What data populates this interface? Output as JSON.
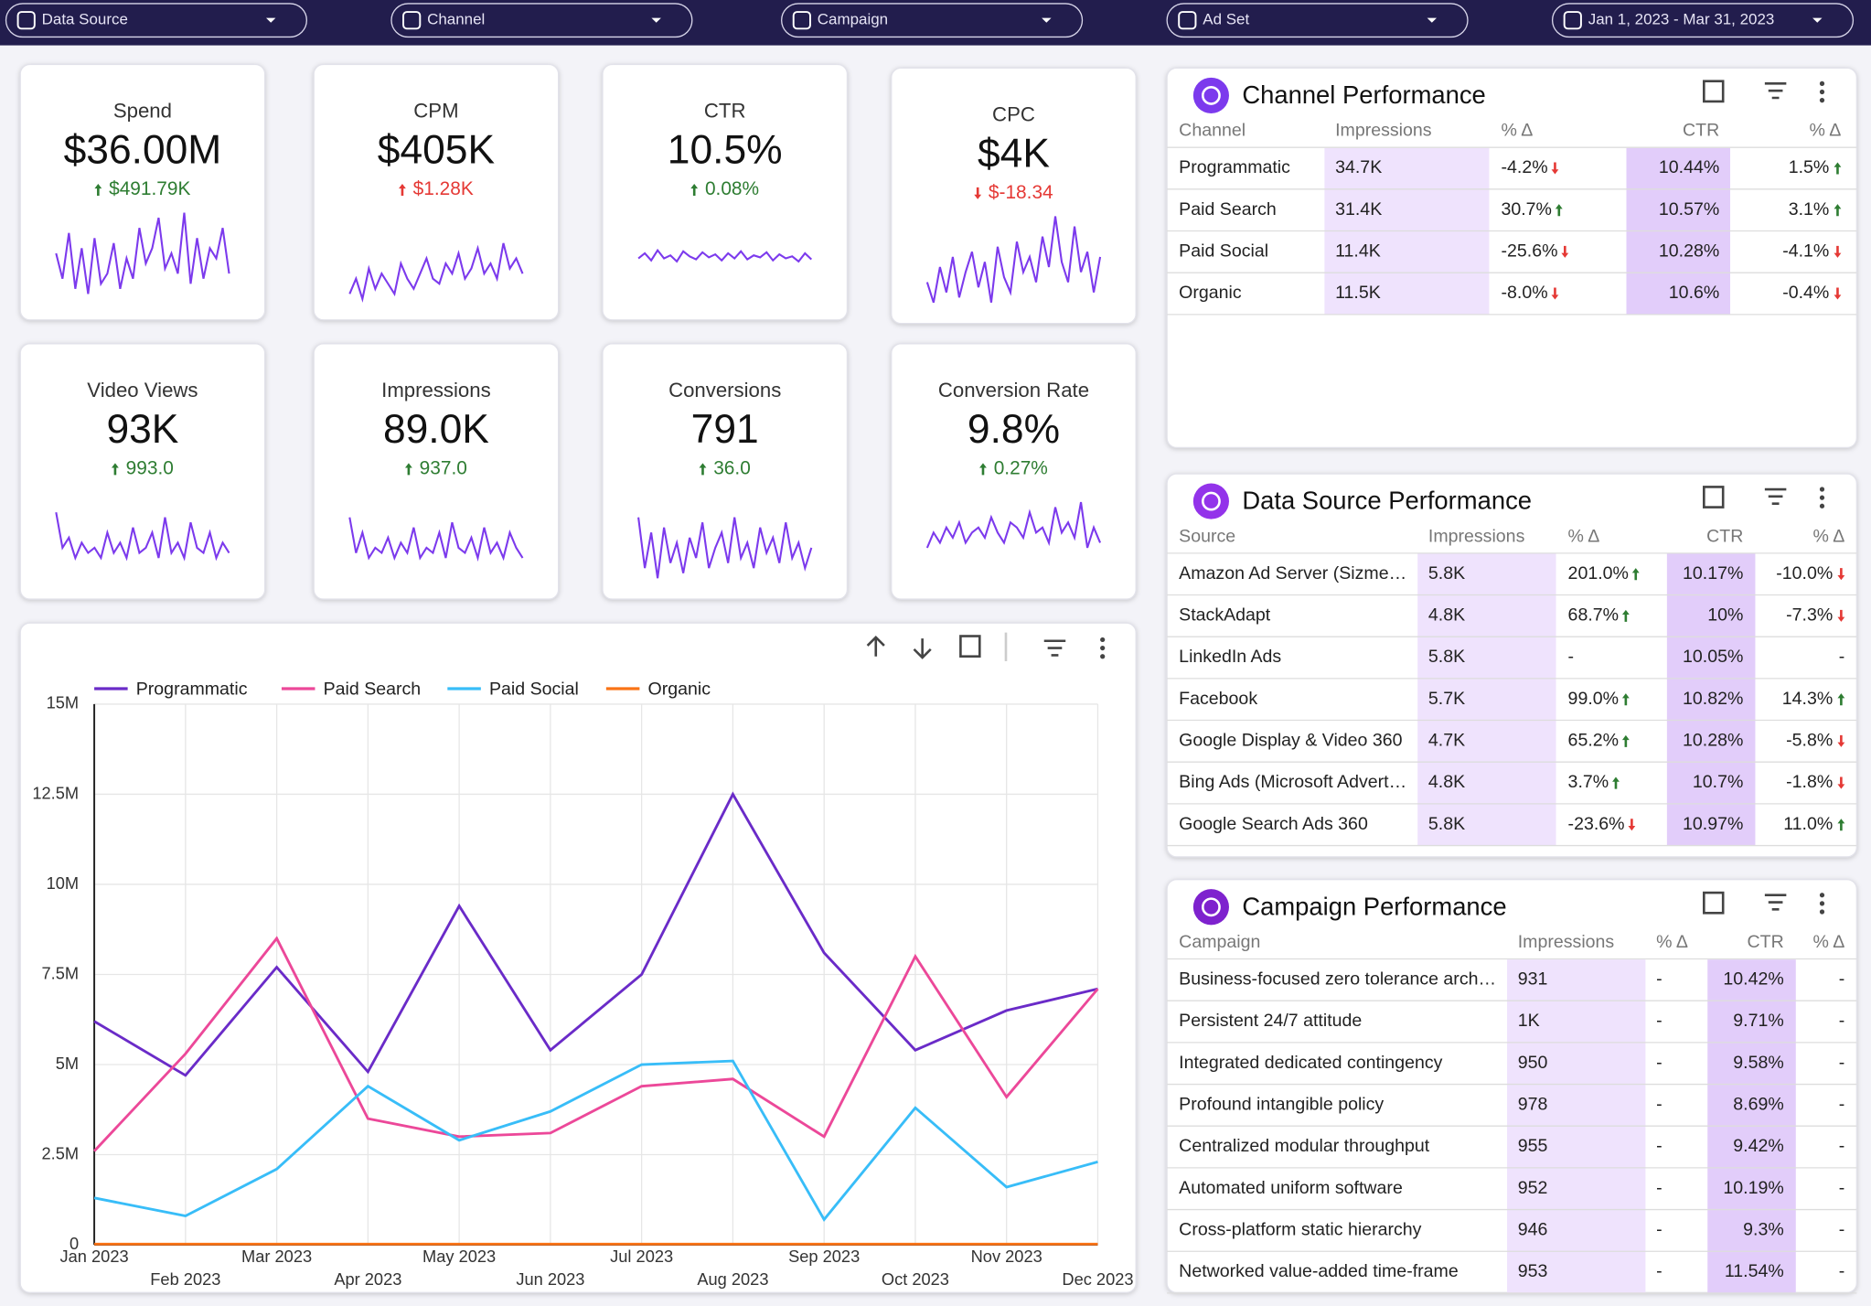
{
  "filters": [
    "Data Source",
    "Channel",
    "Campaign",
    "Ad Set",
    "Jan 1, 2023 - Mar 31, 2023"
  ],
  "sparkline_ylim": [
    0,
    100
  ],
  "kpis": [
    {
      "title": "Spend",
      "value": "$36.00M",
      "delta": "$491.79K",
      "delta_direction": "up",
      "delta_color": "#2e7d32",
      "sparkline": [
        55,
        30,
        75,
        20,
        60,
        15,
        70,
        25,
        35,
        65,
        20,
        50,
        30,
        80,
        45,
        60,
        90,
        40,
        55,
        35,
        95,
        25,
        70,
        30,
        60,
        50,
        80,
        35
      ]
    },
    {
      "title": "CPM",
      "value": "$405K",
      "delta": "$1.28K",
      "delta_direction": "up",
      "delta_color": "#e53935",
      "sparkline": [
        15,
        30,
        10,
        40,
        20,
        35,
        25,
        15,
        45,
        30,
        20,
        35,
        50,
        30,
        25,
        45,
        35,
        55,
        30,
        40,
        60,
        35,
        45,
        30,
        65,
        40,
        50,
        35
      ]
    },
    {
      "title": "CTR",
      "value": "10.5%",
      "delta": "0.08%",
      "delta_direction": "up",
      "delta_color": "#2e7d32",
      "sparkline": [
        50,
        55,
        48,
        58,
        50,
        53,
        47,
        57,
        52,
        49,
        56,
        51,
        54,
        48,
        55,
        50,
        57,
        49,
        53,
        51,
        56,
        48,
        54,
        50,
        52,
        47,
        55,
        49
      ]
    },
    {
      "title": "CPC",
      "value": "$4K",
      "delta": "$-18.34",
      "delta_direction": "down",
      "delta_color": "#e53935",
      "sparkline": [
        30,
        10,
        45,
        20,
        55,
        15,
        40,
        60,
        25,
        50,
        10,
        65,
        35,
        20,
        70,
        40,
        55,
        30,
        75,
        45,
        95,
        50,
        30,
        85,
        40,
        60,
        20,
        55
      ]
    },
    {
      "title": "Video Views",
      "value": "93K",
      "delta": "993.0",
      "delta_direction": "up",
      "delta_color": "#2e7d32",
      "sparkline": [
        75,
        40,
        50,
        30,
        45,
        35,
        40,
        30,
        55,
        35,
        45,
        30,
        60,
        35,
        40,
        55,
        30,
        70,
        35,
        45,
        30,
        65,
        40,
        35,
        55,
        30,
        45,
        35
      ]
    },
    {
      "title": "Impressions",
      "value": "89.0K",
      "delta": "937.0",
      "delta_direction": "up",
      "delta_color": "#2e7d32",
      "sparkline": [
        70,
        35,
        55,
        30,
        40,
        35,
        50,
        30,
        45,
        35,
        60,
        30,
        40,
        35,
        55,
        30,
        65,
        40,
        35,
        50,
        30,
        60,
        35,
        45,
        30,
        55,
        40,
        30
      ]
    },
    {
      "title": "Conversions",
      "value": "791",
      "delta": "36.0",
      "delta_direction": "up",
      "delta_color": "#2e7d32",
      "sparkline": [
        70,
        20,
        55,
        10,
        60,
        25,
        45,
        15,
        50,
        30,
        65,
        20,
        40,
        55,
        25,
        70,
        30,
        45,
        20,
        60,
        35,
        50,
        25,
        65,
        30,
        45,
        20,
        40
      ]
    },
    {
      "title": "Conversion Rate",
      "value": "9.8%",
      "delta": "0.27%",
      "delta_direction": "up",
      "delta_color": "#2e7d32",
      "sparkline": [
        40,
        55,
        45,
        60,
        50,
        65,
        45,
        55,
        60,
        50,
        70,
        55,
        45,
        65,
        60,
        50,
        75,
        55,
        60,
        45,
        80,
        55,
        65,
        50,
        85,
        40,
        60,
        45
      ]
    }
  ],
  "chart_data": {
    "type": "line",
    "categories": [
      "Jan 2023",
      "Feb 2023",
      "Mar 2023",
      "Apr 2023",
      "May 2023",
      "Jun 2023",
      "Jul 2023",
      "Aug 2023",
      "Sep 2023",
      "Oct 2023",
      "Nov 2023",
      "Dec 2023"
    ],
    "series": [
      {
        "name": "Programmatic",
        "color": "#6a2bc8",
        "values": [
          6200000,
          4700000,
          7700000,
          4800000,
          9400000,
          5400000,
          7500000,
          12500000,
          8100000,
          5400000,
          6500000,
          7100000
        ]
      },
      {
        "name": "Paid Search",
        "color": "#ec4899",
        "values": [
          2600000,
          5300000,
          8500000,
          3500000,
          3000000,
          3100000,
          4400000,
          4600000,
          3000000,
          8000000,
          4100000,
          7100000
        ]
      },
      {
        "name": "Paid Social",
        "color": "#38bdf8",
        "values": [
          1300000,
          800000,
          2100000,
          4400000,
          2900000,
          3700000,
          5000000,
          5100000,
          700000,
          3800000,
          1600000,
          2300000
        ]
      },
      {
        "name": "Organic",
        "color": "#f97316",
        "values": [
          20000,
          20000,
          20000,
          20000,
          20000,
          20000,
          20000,
          20000,
          20000,
          20000,
          20000,
          20000
        ]
      }
    ],
    "ylim": [
      0,
      15000000
    ],
    "yticks": [
      0,
      {
        "value": 2500000,
        "label": "2.5M"
      },
      {
        "value": 5000000,
        "label": "5M"
      },
      {
        "value": 7500000,
        "label": "7.5M"
      },
      {
        "value": 10000000,
        "label": "10M"
      },
      {
        "value": 12500000,
        "label": "12.5M"
      },
      {
        "value": 15000000,
        "label": "15M"
      }
    ],
    "grid": true,
    "legend": "top-left"
  },
  "tables": [
    {
      "title": "Channel Performance",
      "columns": [
        "Channel",
        "Impressions",
        "% Δ",
        "CTR",
        "% Δ"
      ],
      "rows": [
        [
          "Programmatic",
          "34.7K",
          "-4.2%",
          "10.44%",
          "1.5%"
        ],
        [
          "Paid Search",
          "31.4K",
          "30.7%",
          "10.57%",
          "3.1%"
        ],
        [
          "Paid Social",
          "11.4K",
          "-25.6%",
          "10.28%",
          "-4.1%"
        ],
        [
          "Organic",
          "11.5K",
          "-8.0%",
          "10.6%",
          "-0.4%"
        ]
      ]
    },
    {
      "title": "Data Source Performance",
      "columns": [
        "Source",
        "Impressions",
        "% Δ",
        "CTR",
        "% Δ"
      ],
      "rows": [
        [
          "Amazon Ad Server (Sizme…",
          "5.8K",
          "201.0%",
          "10.17%",
          "-10.0%"
        ],
        [
          "StackAdapt",
          "4.8K",
          "68.7%",
          "10%",
          "-7.3%"
        ],
        [
          "LinkedIn Ads",
          "5.8K",
          "-",
          "10.05%",
          "-"
        ],
        [
          "Facebook",
          "5.7K",
          "99.0%",
          "10.82%",
          "14.3%"
        ],
        [
          "Google Display & Video 360",
          "4.7K",
          "65.2%",
          "10.28%",
          "-5.8%"
        ],
        [
          "Bing Ads (Microsoft Advert…",
          "4.8K",
          "3.7%",
          "10.7%",
          "-1.8%"
        ],
        [
          "Google Search Ads 360",
          "5.8K",
          "-23.6%",
          "10.97%",
          "11.0%"
        ]
      ]
    },
    {
      "title": "Campaign Performance",
      "columns": [
        "Campaign",
        "Impressions",
        "% Δ",
        "CTR",
        "% Δ"
      ],
      "rows": [
        [
          "Business-focused zero tolerance arch…",
          "931",
          "-",
          "10.42%",
          "-"
        ],
        [
          "Persistent 24/7 attitude",
          "1K",
          "-",
          "9.71%",
          "-"
        ],
        [
          "Integrated dedicated contingency",
          "950",
          "-",
          "9.58%",
          "-"
        ],
        [
          "Profound intangible policy",
          "978",
          "-",
          "8.69%",
          "-"
        ],
        [
          "Centralized modular throughput",
          "955",
          "-",
          "9.42%",
          "-"
        ],
        [
          "Automated uniform software",
          "952",
          "-",
          "10.19%",
          "-"
        ],
        [
          "Cross-platform static hierarchy",
          "946",
          "-",
          "9.3%",
          "-"
        ],
        [
          "Networked value-added time-frame",
          "953",
          "-",
          "11.54%",
          "-"
        ]
      ]
    }
  ]
}
